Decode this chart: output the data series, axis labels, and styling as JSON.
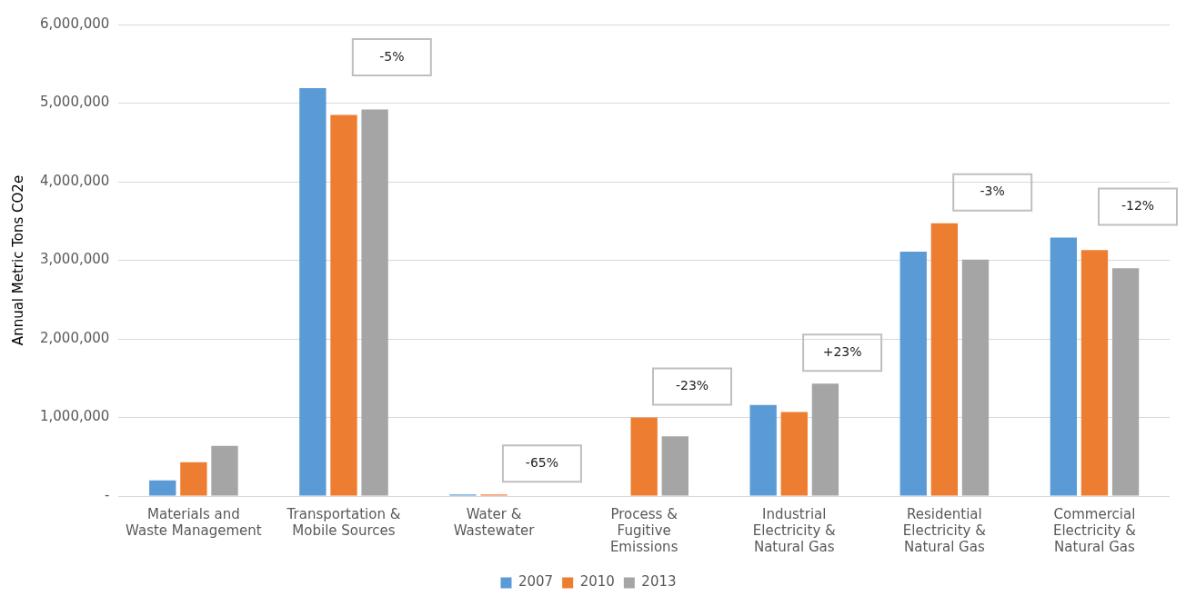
{
  "chart_data": {
    "type": "bar",
    "ylabel": "Annual Metric Tons CO2e",
    "categories": [
      "Materials and Waste Management",
      "Transportation & Mobile Sources",
      "Water & Wastewater",
      "Process & Fugitive Emissions",
      "Industrial Electricity & Natural Gas",
      "Residential Electricity & Natural Gas",
      "Commercial Electricity & Natural Gas"
    ],
    "series": [
      {
        "name": "2007",
        "color": "#5b9bd5",
        "values": [
          200000,
          5190000,
          20000,
          null,
          1160000,
          3110000,
          3290000
        ]
      },
      {
        "name": "2010",
        "color": "#ed7d31",
        "values": [
          430000,
          4850000,
          20000,
          1000000,
          1070000,
          3470000,
          3130000
        ]
      },
      {
        "name": "2013",
        "color": "#a5a5a5",
        "values": [
          640000,
          4920000,
          null,
          760000,
          1430000,
          3010000,
          2900000
        ]
      }
    ],
    "ylim": [
      0,
      6000000
    ],
    "yticks": [
      {
        "value": 0,
        "label": "-"
      },
      {
        "value": 1000000,
        "label": "1,000,000"
      },
      {
        "value": 2000000,
        "label": "2,000,000"
      },
      {
        "value": 3000000,
        "label": "3,000,000"
      },
      {
        "value": 4000000,
        "label": "4,000,000"
      },
      {
        "value": 5000000,
        "label": "5,000,000"
      },
      {
        "value": 6000000,
        "label": "6,000,000"
      }
    ],
    "annotations": [
      "-5%",
      "-65%",
      "-23%",
      "+23%",
      "-3%",
      "-12%"
    ],
    "grid": "y",
    "legend": "bottom"
  }
}
